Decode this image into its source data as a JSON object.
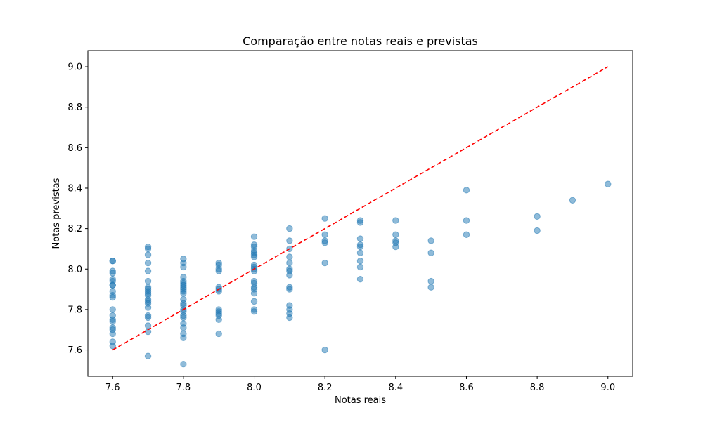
{
  "chart_data": {
    "type": "scatter",
    "title": "Comparação entre notas reais e previstas",
    "xlabel": "Notas reais",
    "ylabel": "Notas previstas",
    "xlim": [
      7.53,
      9.07
    ],
    "ylim": [
      7.47,
      9.08
    ],
    "xticks": [
      "7.6",
      "7.8",
      "8.0",
      "8.2",
      "8.4",
      "8.6",
      "8.8",
      "9.0"
    ],
    "yticks": [
      "7.6",
      "7.8",
      "8.0",
      "8.2",
      "8.4",
      "8.6",
      "8.8",
      "9.0"
    ],
    "grid": false,
    "colors": {
      "points": "#1f77b4",
      "reference_line": "#ff0000"
    },
    "reference_line": {
      "style": "dashed",
      "x": [
        7.6,
        9.0
      ],
      "y": [
        7.6,
        9.0
      ]
    },
    "points": [
      [
        7.6,
        8.04
      ],
      [
        7.6,
        8.04
      ],
      [
        7.6,
        7.99
      ],
      [
        7.6,
        7.98
      ],
      [
        7.6,
        7.95
      ],
      [
        7.6,
        7.94
      ],
      [
        7.6,
        7.92
      ],
      [
        7.6,
        7.92
      ],
      [
        7.6,
        7.89
      ],
      [
        7.6,
        7.87
      ],
      [
        7.6,
        7.86
      ],
      [
        7.6,
        7.8
      ],
      [
        7.6,
        7.77
      ],
      [
        7.6,
        7.75
      ],
      [
        7.6,
        7.74
      ],
      [
        7.6,
        7.71
      ],
      [
        7.6,
        7.7
      ],
      [
        7.6,
        7.68
      ],
      [
        7.6,
        7.64
      ],
      [
        7.6,
        7.62
      ],
      [
        7.7,
        8.11
      ],
      [
        7.7,
        8.1
      ],
      [
        7.7,
        8.07
      ],
      [
        7.7,
        8.03
      ],
      [
        7.7,
        7.99
      ],
      [
        7.7,
        7.94
      ],
      [
        7.7,
        7.91
      ],
      [
        7.7,
        7.9
      ],
      [
        7.7,
        7.89
      ],
      [
        7.7,
        7.88
      ],
      [
        7.7,
        7.87
      ],
      [
        7.7,
        7.85
      ],
      [
        7.7,
        7.84
      ],
      [
        7.7,
        7.83
      ],
      [
        7.7,
        7.81
      ],
      [
        7.7,
        7.77
      ],
      [
        7.7,
        7.76
      ],
      [
        7.7,
        7.72
      ],
      [
        7.7,
        7.69
      ],
      [
        7.7,
        7.57
      ],
      [
        7.8,
        8.05
      ],
      [
        7.8,
        8.03
      ],
      [
        7.8,
        8.01
      ],
      [
        7.8,
        7.96
      ],
      [
        7.8,
        7.94
      ],
      [
        7.8,
        7.93
      ],
      [
        7.8,
        7.92
      ],
      [
        7.8,
        7.91
      ],
      [
        7.8,
        7.9
      ],
      [
        7.8,
        7.89
      ],
      [
        7.8,
        7.88
      ],
      [
        7.8,
        7.85
      ],
      [
        7.8,
        7.83
      ],
      [
        7.8,
        7.82
      ],
      [
        7.8,
        7.8
      ],
      [
        7.8,
        7.79
      ],
      [
        7.8,
        7.77
      ],
      [
        7.8,
        7.76
      ],
      [
        7.8,
        7.73
      ],
      [
        7.8,
        7.71
      ],
      [
        7.8,
        7.68
      ],
      [
        7.8,
        7.66
      ],
      [
        7.8,
        7.53
      ],
      [
        7.9,
        8.03
      ],
      [
        7.9,
        8.02
      ],
      [
        7.9,
        8.0
      ],
      [
        7.9,
        7.99
      ],
      [
        7.9,
        7.91
      ],
      [
        7.9,
        7.9
      ],
      [
        7.9,
        7.89
      ],
      [
        7.9,
        7.8
      ],
      [
        7.9,
        7.79
      ],
      [
        7.9,
        7.78
      ],
      [
        7.9,
        7.77
      ],
      [
        7.9,
        7.75
      ],
      [
        7.9,
        7.68
      ],
      [
        8.0,
        8.16
      ],
      [
        8.0,
        8.12
      ],
      [
        8.0,
        8.11
      ],
      [
        8.0,
        8.09
      ],
      [
        8.0,
        8.08
      ],
      [
        8.0,
        8.07
      ],
      [
        8.0,
        8.06
      ],
      [
        8.0,
        8.02
      ],
      [
        8.0,
        8.01
      ],
      [
        8.0,
        8.0
      ],
      [
        8.0,
        7.99
      ],
      [
        8.0,
        7.94
      ],
      [
        8.0,
        7.93
      ],
      [
        8.0,
        7.91
      ],
      [
        8.0,
        7.9
      ],
      [
        8.0,
        7.88
      ],
      [
        8.0,
        7.84
      ],
      [
        8.0,
        7.8
      ],
      [
        8.0,
        7.79
      ],
      [
        8.1,
        8.2
      ],
      [
        8.1,
        8.14
      ],
      [
        8.1,
        8.1
      ],
      [
        8.1,
        8.06
      ],
      [
        8.1,
        8.03
      ],
      [
        8.1,
        8.0
      ],
      [
        8.1,
        7.99
      ],
      [
        8.1,
        7.97
      ],
      [
        8.1,
        7.91
      ],
      [
        8.1,
        7.9
      ],
      [
        8.1,
        7.82
      ],
      [
        8.1,
        7.8
      ],
      [
        8.1,
        7.78
      ],
      [
        8.1,
        7.76
      ],
      [
        8.2,
        8.25
      ],
      [
        8.2,
        8.17
      ],
      [
        8.2,
        8.14
      ],
      [
        8.2,
        8.13
      ],
      [
        8.2,
        8.03
      ],
      [
        8.2,
        7.6
      ],
      [
        8.3,
        8.24
      ],
      [
        8.3,
        8.23
      ],
      [
        8.3,
        8.15
      ],
      [
        8.3,
        8.12
      ],
      [
        8.3,
        8.11
      ],
      [
        8.3,
        8.08
      ],
      [
        8.3,
        8.04
      ],
      [
        8.3,
        8.01
      ],
      [
        8.3,
        7.95
      ],
      [
        8.4,
        8.24
      ],
      [
        8.4,
        8.17
      ],
      [
        8.4,
        8.14
      ],
      [
        8.4,
        8.13
      ],
      [
        8.4,
        8.11
      ],
      [
        8.5,
        8.14
      ],
      [
        8.5,
        8.08
      ],
      [
        8.5,
        7.94
      ],
      [
        8.5,
        7.91
      ],
      [
        8.6,
        8.39
      ],
      [
        8.6,
        8.24
      ],
      [
        8.6,
        8.17
      ],
      [
        8.8,
        8.26
      ],
      [
        8.8,
        8.19
      ],
      [
        8.9,
        8.34
      ],
      [
        9.0,
        8.42
      ]
    ]
  }
}
